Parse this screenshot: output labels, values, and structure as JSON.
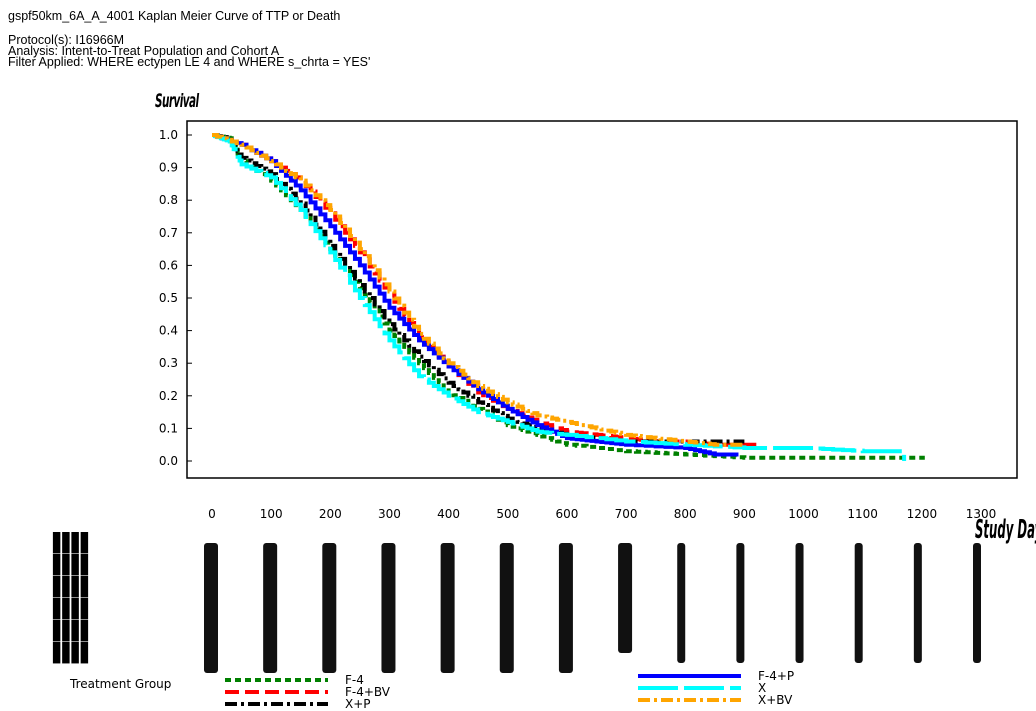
{
  "header": {
    "line1": "gspf50km_6A_A_4001 Kaplan Meier Curve of TTP or Death",
    "line2": "Protocol(s): I16966M",
    "line3": "Analysis: Intent-to-Treat Population and Cohort A",
    "line4": "Filter Applied: WHERE ectypen LE 4 and WHERE s_chrta = YES'"
  },
  "legend": {
    "title": "Treatment Group"
  },
  "chart_data": {
    "type": "line",
    "title": "gspf50km_6A_A_4001 Kaplan Meier Curve of TTP or Death",
    "ylabel": "Survival",
    "xlabel": "Study Day",
    "xlim": [
      -50,
      1340
    ],
    "ylim": [
      -0.03,
      1.04
    ],
    "xticks": [
      "0",
      "100",
      "200",
      "300",
      "400",
      "500",
      "600",
      "700",
      "800",
      "900",
      "1000",
      "1100",
      "1200",
      "1300"
    ],
    "yticks": [
      "1.0",
      "0.9",
      "0.8",
      "0.7",
      "0.6",
      "0.5",
      "0.4",
      "0.3",
      "0.2",
      "0.1",
      "0.0"
    ],
    "legend_position": "bottom",
    "series": [
      {
        "name": "F-4",
        "color": "#008000",
        "dash": "6,4",
        "points": [
          [
            0,
            1.0
          ],
          [
            30,
            0.99
          ],
          [
            50,
            0.92
          ],
          [
            100,
            0.86
          ],
          [
            150,
            0.77
          ],
          [
            200,
            0.65
          ],
          [
            250,
            0.53
          ],
          [
            300,
            0.4
          ],
          [
            350,
            0.3
          ],
          [
            400,
            0.21
          ],
          [
            450,
            0.16
          ],
          [
            500,
            0.11
          ],
          [
            550,
            0.08
          ],
          [
            600,
            0.05
          ],
          [
            700,
            0.03
          ],
          [
            800,
            0.02
          ],
          [
            900,
            0.01
          ],
          [
            1000,
            0.01
          ],
          [
            1100,
            0.01
          ],
          [
            1205,
            0.01
          ]
        ]
      },
      {
        "name": "F-4+BV",
        "color": "#ff0000",
        "dash": "14,6",
        "points": [
          [
            0,
            1.0
          ],
          [
            50,
            0.97
          ],
          [
            100,
            0.92
          ],
          [
            150,
            0.86
          ],
          [
            200,
            0.76
          ],
          [
            250,
            0.64
          ],
          [
            300,
            0.51
          ],
          [
            350,
            0.38
          ],
          [
            400,
            0.29
          ],
          [
            450,
            0.21
          ],
          [
            500,
            0.16
          ],
          [
            550,
            0.12
          ],
          [
            600,
            0.09
          ],
          [
            650,
            0.08
          ],
          [
            700,
            0.07
          ],
          [
            750,
            0.06
          ],
          [
            800,
            0.06
          ],
          [
            850,
            0.05
          ],
          [
            930,
            0.05
          ]
        ]
      },
      {
        "name": "X+P",
        "color": "#000000",
        "dash": "12,4,3,4",
        "points": [
          [
            0,
            1.0
          ],
          [
            30,
            0.99
          ],
          [
            50,
            0.93
          ],
          [
            100,
            0.88
          ],
          [
            150,
            0.79
          ],
          [
            200,
            0.66
          ],
          [
            250,
            0.54
          ],
          [
            300,
            0.42
          ],
          [
            350,
            0.32
          ],
          [
            400,
            0.24
          ],
          [
            450,
            0.18
          ],
          [
            500,
            0.13
          ],
          [
            550,
            0.1
          ],
          [
            600,
            0.08
          ],
          [
            650,
            0.07
          ],
          [
            700,
            0.06
          ],
          [
            800,
            0.06
          ],
          [
            900,
            0.06
          ]
        ]
      },
      {
        "name": "F-4+P",
        "color": "#0000ff",
        "dash": "",
        "points": [
          [
            0,
            1.0
          ],
          [
            50,
            0.97
          ],
          [
            100,
            0.92
          ],
          [
            150,
            0.83
          ],
          [
            200,
            0.72
          ],
          [
            250,
            0.6
          ],
          [
            300,
            0.47
          ],
          [
            350,
            0.37
          ],
          [
            400,
            0.29
          ],
          [
            450,
            0.22
          ],
          [
            500,
            0.16
          ],
          [
            550,
            0.11
          ],
          [
            600,
            0.07
          ],
          [
            650,
            0.06
          ],
          [
            700,
            0.05
          ],
          [
            800,
            0.04
          ],
          [
            850,
            0.02
          ],
          [
            890,
            0.02
          ]
        ]
      },
      {
        "name": "X",
        "color": "#00ffff",
        "dash": "40,6",
        "points": [
          [
            0,
            1.0
          ],
          [
            30,
            0.98
          ],
          [
            50,
            0.91
          ],
          [
            100,
            0.87
          ],
          [
            150,
            0.77
          ],
          [
            200,
            0.64
          ],
          [
            250,
            0.5
          ],
          [
            300,
            0.37
          ],
          [
            350,
            0.26
          ],
          [
            400,
            0.2
          ],
          [
            450,
            0.15
          ],
          [
            500,
            0.12
          ],
          [
            550,
            0.09
          ],
          [
            600,
            0.08
          ],
          [
            700,
            0.06
          ],
          [
            800,
            0.05
          ],
          [
            900,
            0.04
          ],
          [
            1000,
            0.04
          ],
          [
            1100,
            0.03
          ],
          [
            1170,
            0.03
          ],
          [
            1170,
            0.0
          ]
        ]
      },
      {
        "name": "X+BV",
        "color": "#ffa500",
        "dash": "12,4,3,4",
        "points": [
          [
            0,
            1.0
          ],
          [
            50,
            0.97
          ],
          [
            100,
            0.92
          ],
          [
            150,
            0.86
          ],
          [
            200,
            0.77
          ],
          [
            250,
            0.65
          ],
          [
            300,
            0.52
          ],
          [
            350,
            0.39
          ],
          [
            400,
            0.3
          ],
          [
            450,
            0.23
          ],
          [
            500,
            0.18
          ],
          [
            550,
            0.14
          ],
          [
            600,
            0.12
          ],
          [
            650,
            0.1
          ],
          [
            700,
            0.08
          ],
          [
            750,
            0.07
          ],
          [
            800,
            0.06
          ],
          [
            850,
            0.05
          ],
          [
            900,
            0.05
          ]
        ]
      }
    ]
  }
}
